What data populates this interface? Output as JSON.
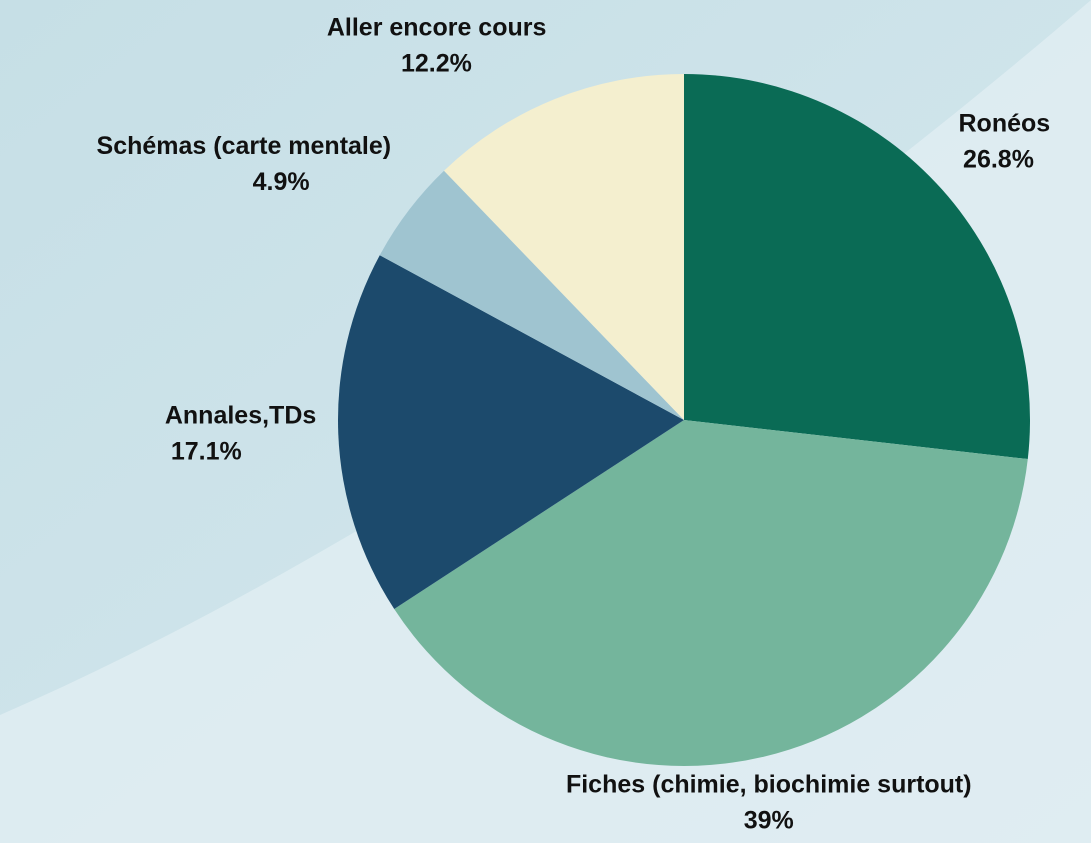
{
  "chart_data": {
    "type": "pie",
    "categories": [
      "Ronéos",
      "Fiches (chimie, biochimie surtout)",
      "Annales,TDs",
      "Schémas (carte mentale)",
      "Aller encore cours"
    ],
    "values": [
      26.8,
      39,
      17.1,
      4.9,
      12.2
    ],
    "value_labels": [
      "26.8%",
      "39%",
      "17.1%",
      "4.9%",
      "12.2%"
    ],
    "colors": [
      "#0a6b55",
      "#74b59c",
      "#1c4a6c",
      "#9fc4d0",
      "#f4efcf"
    ]
  }
}
